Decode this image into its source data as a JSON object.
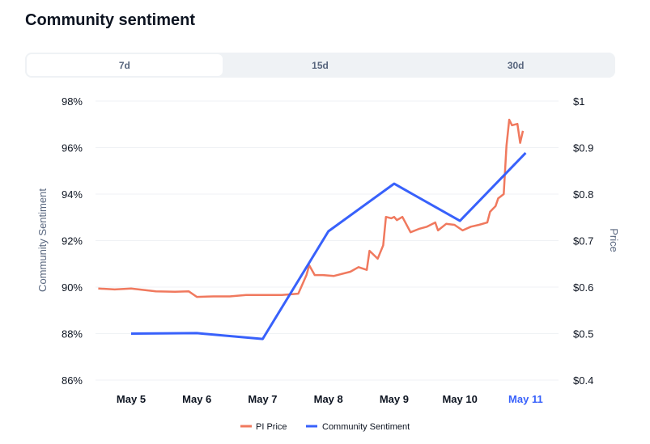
{
  "title": "Community sentiment",
  "tabs": [
    {
      "label": "7d",
      "active": true
    },
    {
      "label": "15d",
      "active": false
    },
    {
      "label": "30d",
      "active": false
    }
  ],
  "chart_data": {
    "type": "line",
    "title": "",
    "ylabel_left": "Community Sentiment",
    "ylabel_right": "Price",
    "x_ticks": [
      "May 5",
      "May 6",
      "May 7",
      "May 8",
      "May 9",
      "May 10",
      "May 11"
    ],
    "highlighted_x_tick": "May 11",
    "xlim": [
      "May 4 11:00",
      "May 11 12:00"
    ],
    "y_left": {
      "ticks": [
        "98%",
        "96%",
        "94%",
        "92%",
        "90%",
        "88%",
        "86%"
      ],
      "range": [
        86,
        98
      ]
    },
    "y_right": {
      "ticks": [
        "$1",
        "$0.9",
        "$0.8",
        "$0.7",
        "$0.6",
        "$0.5",
        "$0.4"
      ],
      "range": [
        0.4,
        1.0
      ]
    },
    "grid": true,
    "legend_position": "bottom",
    "series": [
      {
        "name": "PI Price",
        "axis": "right",
        "color": "#f0795e",
        "points": [
          [
            "May 4 12:00",
            0.597
          ],
          [
            "May 4 18:00",
            0.595
          ],
          [
            "May 5 00:00",
            0.597
          ],
          [
            "May 5 09:00",
            0.591
          ],
          [
            "May 5 16:00",
            0.59
          ],
          [
            "May 5 21:00",
            0.591
          ],
          [
            "May 6 00:00",
            0.579
          ],
          [
            "May 6 06:00",
            0.58
          ],
          [
            "May 6 12:00",
            0.58
          ],
          [
            "May 6 18:00",
            0.583
          ],
          [
            "May 7 00:00",
            0.583
          ],
          [
            "May 7 07:00",
            0.583
          ],
          [
            "May 7 13:00",
            0.586
          ],
          [
            "May 7 16:00",
            0.626
          ],
          [
            "May 7 17:00",
            0.647
          ],
          [
            "May 7 19:00",
            0.626
          ],
          [
            "May 7 22:00",
            0.626
          ],
          [
            "May 8 02:00",
            0.624
          ],
          [
            "May 8 08:00",
            0.633
          ],
          [
            "May 8 11:00",
            0.643
          ],
          [
            "May 8 14:00",
            0.637
          ],
          [
            "May 8 15:00",
            0.678
          ],
          [
            "May 8 18:00",
            0.661
          ],
          [
            "May 8 20:00",
            0.69
          ],
          [
            "May 8 21:00",
            0.751
          ],
          [
            "May 8 23:00",
            0.748
          ],
          [
            "May 9 00:00",
            0.751
          ],
          [
            "May 9 01:00",
            0.744
          ],
          [
            "May 9 03:00",
            0.751
          ],
          [
            "May 9 06:00",
            0.718
          ],
          [
            "May 9 09:00",
            0.725
          ],
          [
            "May 9 12:00",
            0.73
          ],
          [
            "May 9 15:00",
            0.739
          ],
          [
            "May 9 16:00",
            0.722
          ],
          [
            "May 9 19:00",
            0.736
          ],
          [
            "May 9 22:00",
            0.734
          ],
          [
            "May 10 01:00",
            0.722
          ],
          [
            "May 10 04:00",
            0.73
          ],
          [
            "May 10 07:00",
            0.734
          ],
          [
            "May 10 10:00",
            0.739
          ],
          [
            "May 10 11:00",
            0.762
          ],
          [
            "May 10 13:00",
            0.774
          ],
          [
            "May 10 14:00",
            0.791
          ],
          [
            "May 10 16:00",
            0.8
          ],
          [
            "May 10 17:00",
            0.904
          ],
          [
            "May 10 18:00",
            0.96
          ],
          [
            "May 10 19:00",
            0.948
          ],
          [
            "May 10 21:00",
            0.951
          ],
          [
            "May 10 22:00",
            0.91
          ],
          [
            "May 10 23:00",
            0.936
          ]
        ]
      },
      {
        "name": "Community Sentiment",
        "axis": "left",
        "color": "#3861fb",
        "points": [
          [
            "May 5 00:00",
            88.0
          ],
          [
            "May 6 00:00",
            88.02
          ],
          [
            "May 7 00:00",
            87.77
          ],
          [
            "May 8 00:00",
            92.4
          ],
          [
            "May 9 00:00",
            94.45
          ],
          [
            "May 10 00:00",
            92.85
          ],
          [
            "May 11 00:00",
            95.77
          ]
        ]
      }
    ]
  }
}
